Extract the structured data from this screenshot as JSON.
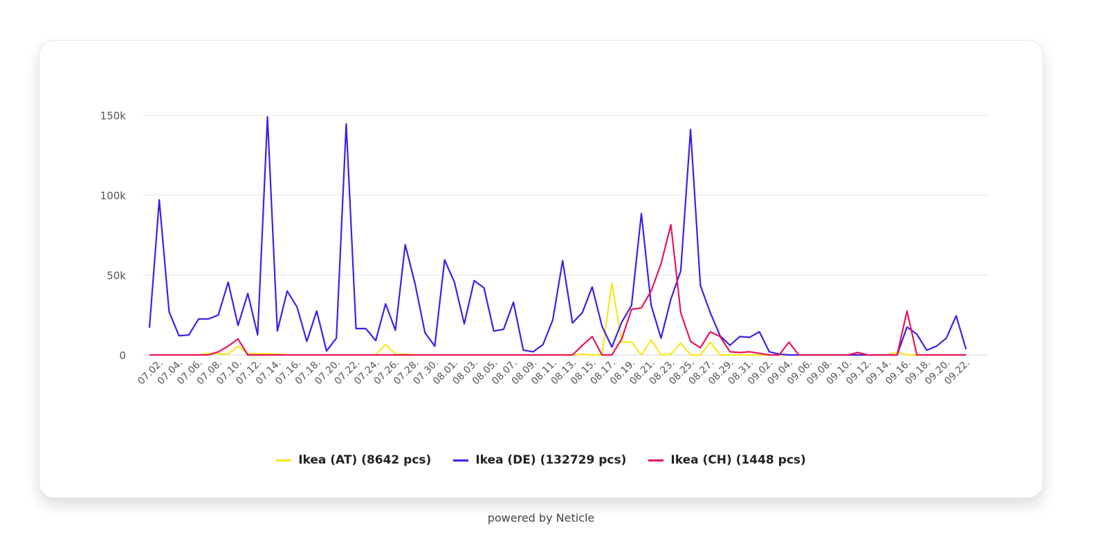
{
  "footer": {
    "text": "powered by Neticle"
  },
  "chart_data": {
    "type": "line",
    "ylim": [
      0,
      155000
    ],
    "yticks": [
      0,
      50000,
      100000,
      150000
    ],
    "ytick_labels": [
      "0",
      "50k",
      "100k",
      "150k"
    ],
    "grid": true,
    "legend_position": "bottom",
    "x": [
      "07.01.",
      "07.02.",
      "07.03.",
      "07.04.",
      "07.05.",
      "07.06.",
      "07.07.",
      "07.08.",
      "07.09.",
      "07.10.",
      "07.11.",
      "07.12.",
      "07.13.",
      "07.14.",
      "07.15.",
      "07.16.",
      "07.17.",
      "07.18.",
      "07.19.",
      "07.20.",
      "07.21.",
      "07.22.",
      "07.23.",
      "07.24.",
      "07.25.",
      "07.26.",
      "07.27.",
      "07.28.",
      "07.29.",
      "07.30.",
      "07.31.",
      "08.01.",
      "08.02.",
      "08.03.",
      "08.04.",
      "08.05.",
      "08.06.",
      "08.07.",
      "08.08.",
      "08.09.",
      "08.10.",
      "08.11.",
      "08.12.",
      "08.13.",
      "08.14.",
      "08.15.",
      "08.16.",
      "08.17.",
      "08.18.",
      "08.19.",
      "08.20.",
      "08.21.",
      "08.22.",
      "08.23.",
      "08.24.",
      "08.25.",
      "08.26.",
      "08.27.",
      "08.28.",
      "08.29.",
      "08.30.",
      "08.31.",
      "09.01.",
      "09.02.",
      "09.03.",
      "09.04.",
      "09.05.",
      "09.06.",
      "09.07.",
      "09.08.",
      "09.09.",
      "09.10.",
      "09.11.",
      "09.12.",
      "09.13.",
      "09.14.",
      "09.15.",
      "09.16.",
      "09.17.",
      "09.18.",
      "09.19.",
      "09.20.",
      "09.21.",
      "09.22."
    ],
    "tick_labels": [
      "07.02.",
      "07.04.",
      "07.06.",
      "07.08.",
      "07.10.",
      "07.12.",
      "07.14.",
      "07.16.",
      "07.18.",
      "07.20.",
      "07.22.",
      "07.24.",
      "07.26.",
      "07.28.",
      "07.30.",
      "08.01.",
      "08.03.",
      "08.05.",
      "08.07.",
      "08.09.",
      "08.11.",
      "08.13.",
      "08.15.",
      "08.17.",
      "08.19.",
      "08.21.",
      "08.23.",
      "08.25.",
      "08.27.",
      "08.29.",
      "08.31.",
      "09.02.",
      "09.04.",
      "09.06.",
      "09.08.",
      "09.10.",
      "09.12.",
      "09.14.",
      "09.16.",
      "09.18.",
      "09.20.",
      "09.22."
    ],
    "series": [
      {
        "name": "Ikea (AT) (8642 pcs)",
        "color": "#f7e81c",
        "values": [
          0,
          0,
          0,
          0,
          0,
          0,
          1000,
          800,
          500,
          5500,
          800,
          800,
          800,
          500,
          0,
          0,
          0,
          0,
          0,
          0,
          0,
          0,
          0,
          0,
          6500,
          500,
          500,
          0,
          0,
          0,
          0,
          0,
          0,
          0,
          0,
          0,
          0,
          0,
          0,
          0,
          0,
          0,
          0,
          0,
          500,
          0,
          0,
          45000,
          8000,
          8000,
          0,
          9500,
          0,
          500,
          7500,
          0,
          0,
          8000,
          0,
          0,
          0,
          0,
          0,
          0,
          0,
          0,
          0,
          0,
          0,
          0,
          0,
          0,
          0,
          0,
          0,
          0,
          2000,
          0,
          0,
          0,
          0,
          0,
          0,
          0
        ]
      },
      {
        "name": "Ikea (DE) (132729 pcs)",
        "color": "#3d1fe8",
        "values": [
          17000,
          97000,
          27000,
          12000,
          12500,
          22500,
          22500,
          25000,
          45500,
          18500,
          38500,
          12500,
          149000,
          15000,
          40000,
          30000,
          8500,
          27500,
          2500,
          10500,
          144500,
          16500,
          16500,
          9000,
          32000,
          15500,
          69000,
          44500,
          14000,
          5500,
          59500,
          45500,
          19500,
          46500,
          42000,
          15000,
          16000,
          33000,
          3000,
          2000,
          6500,
          22000,
          59000,
          20000,
          26500,
          42500,
          18000,
          5000,
          20500,
          31000,
          88500,
          31000,
          10500,
          35000,
          52500,
          141000,
          43500,
          26500,
          12000,
          6000,
          11500,
          11000,
          14500,
          2000,
          500,
          0,
          0,
          0,
          0,
          0,
          0,
          0,
          0,
          0,
          0,
          0,
          0,
          17500,
          13000,
          3000,
          5500,
          10500,
          24500,
          3500
        ]
      },
      {
        "name": "Ikea (CH) (1448 pcs)",
        "color": "#e8125c",
        "values": [
          0,
          0,
          0,
          0,
          0,
          0,
          0,
          2000,
          5500,
          10000,
          0,
          0,
          0,
          0,
          0,
          0,
          0,
          0,
          0,
          0,
          0,
          0,
          0,
          0,
          0,
          0,
          0,
          0,
          0,
          0,
          0,
          0,
          0,
          0,
          0,
          0,
          0,
          0,
          0,
          0,
          0,
          0,
          0,
          0,
          6000,
          11500,
          0,
          0,
          10000,
          28500,
          29500,
          40000,
          57000,
          81500,
          26500,
          8500,
          4500,
          14500,
          11500,
          2000,
          1500,
          2000,
          1000,
          0,
          0,
          8000,
          0,
          0,
          0,
          0,
          0,
          0,
          1500,
          0,
          0,
          0,
          0,
          27500,
          0,
          0,
          0,
          0,
          0,
          0
        ]
      }
    ]
  }
}
